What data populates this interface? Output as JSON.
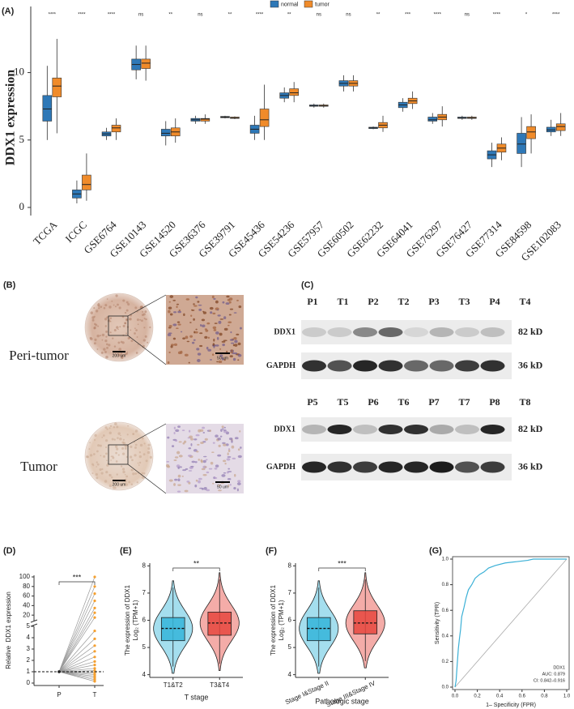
{
  "chart_data": [
    {
      "type": "boxplot",
      "panel": "(A)",
      "ylabel": "DDX1 expression",
      "categories": [
        "TCGA",
        "ICGC",
        "GSE6764",
        "GSE10143",
        "GSE14520",
        "GSE36376",
        "GSE39791",
        "GSE45436",
        "GSE54236",
        "GSE57957",
        "GSE60502",
        "GSE62232",
        "GSE64041",
        "GSE76297",
        "GSE76427",
        "GSE77314",
        "GSE84598",
        "GSE102083"
      ],
      "series": [
        {
          "name": "normal",
          "color": "#2e78b7",
          "values": [
            [
              5.0,
              6.4,
              7.3,
              8.3,
              10.5
            ],
            [
              0.3,
              0.7,
              1.0,
              1.3,
              2.0
            ],
            [
              5.0,
              5.3,
              5.45,
              5.6,
              5.9
            ],
            [
              9.5,
              10.2,
              10.6,
              11.0,
              12.0
            ],
            [
              4.6,
              5.3,
              5.5,
              5.8,
              6.4
            ],
            [
              6.2,
              6.4,
              6.5,
              6.6,
              6.8
            ],
            [
              6.6,
              6.65,
              6.7,
              6.75,
              6.8
            ],
            [
              5.0,
              5.5,
              5.8,
              6.1,
              6.8
            ],
            [
              7.8,
              8.1,
              8.3,
              8.5,
              8.9
            ],
            [
              7.4,
              7.5,
              7.55,
              7.6,
              7.7
            ],
            [
              8.6,
              9.0,
              9.2,
              9.4,
              9.8
            ],
            [
              5.8,
              5.85,
              5.9,
              5.95,
              6.0
            ],
            [
              7.1,
              7.4,
              7.6,
              7.8,
              8.1
            ],
            [
              6.2,
              6.4,
              6.5,
              6.7,
              7.0
            ],
            [
              6.5,
              6.6,
              6.65,
              6.7,
              6.8
            ],
            [
              3.0,
              3.6,
              3.9,
              4.2,
              4.8
            ],
            [
              3.0,
              4.0,
              4.7,
              5.5,
              6.7
            ],
            [
              5.3,
              5.6,
              5.75,
              5.95,
              6.5
            ]
          ]
        },
        {
          "name": "tumor",
          "color": "#f08b2a",
          "values": [
            [
              5.5,
              8.2,
              9.0,
              9.6,
              12.5
            ],
            [
              0.5,
              1.3,
              1.7,
              2.4,
              4.0
            ],
            [
              5.0,
              5.6,
              5.9,
              6.1,
              6.6
            ],
            [
              9.4,
              10.3,
              10.7,
              11.0,
              12.0
            ],
            [
              4.8,
              5.3,
              5.6,
              5.9,
              6.6
            ],
            [
              6.2,
              6.4,
              6.55,
              6.6,
              6.9
            ],
            [
              6.55,
              6.6,
              6.65,
              6.7,
              6.75
            ],
            [
              5.0,
              6.0,
              6.5,
              7.3,
              9.1
            ],
            [
              7.8,
              8.3,
              8.5,
              8.8,
              9.3
            ],
            [
              7.4,
              7.5,
              7.55,
              7.6,
              7.7
            ],
            [
              8.6,
              9.0,
              9.2,
              9.4,
              9.8
            ],
            [
              5.6,
              5.9,
              6.1,
              6.3,
              6.8
            ],
            [
              7.3,
              7.7,
              7.9,
              8.1,
              8.6
            ],
            [
              6.0,
              6.5,
              6.7,
              6.9,
              7.5
            ],
            [
              6.5,
              6.6,
              6.65,
              6.7,
              6.8
            ],
            [
              3.5,
              4.1,
              4.4,
              4.7,
              5.2
            ],
            [
              4.0,
              5.1,
              5.6,
              6.0,
              6.9
            ],
            [
              5.3,
              5.7,
              6.0,
              6.2,
              7.0
            ]
          ]
        }
      ],
      "annotations": [
        "****",
        "****",
        "****",
        "ns",
        "**",
        "ns",
        "**",
        "****",
        "**",
        "ns",
        "ns",
        "**",
        "***",
        "****",
        "ns",
        "****",
        "*",
        "****"
      ],
      "ylim": [
        -0.6,
        14.9
      ],
      "yticks": [
        0,
        5,
        10
      ]
    },
    {
      "type": "paired",
      "panel": "(D)",
      "ylabel": "Relative  DDX1 expression",
      "categories": [
        "P",
        "T"
      ],
      "values": [
        [
          1,
          1,
          1,
          1,
          1,
          1,
          1,
          1,
          1,
          1,
          1,
          1,
          1,
          1,
          1,
          1,
          1,
          1,
          1,
          1,
          1,
          1
        ],
        [
          0.15,
          0.3,
          0.45,
          0.6,
          0.75,
          0.9,
          1.1,
          1.3,
          1.6,
          1.9,
          2.3,
          2.8,
          3.3,
          3.9,
          4.6,
          15,
          25,
          35,
          50,
          65,
          80,
          100
        ]
      ],
      "color": "#f5a030",
      "ylim": [
        0,
        5
      ],
      "yticks": [
        0,
        1,
        2,
        3,
        4,
        5
      ],
      "ylim_upper": [
        5,
        100
      ],
      "yticks_upper": [
        20,
        40,
        60,
        80,
        100
      ],
      "reference_line": 1,
      "annotation": "***"
    },
    {
      "type": "violin",
      "panel": "(E)",
      "ylabel": "The expression of DDX1",
      "ylabel2": "Log₂ (TPM+1)",
      "xlabel": "T stage",
      "categories": [
        "T1&T2",
        "T3&T4"
      ],
      "colors": [
        "#35b5d9",
        "#e6463e"
      ],
      "values": [
        [
          4.3,
          5.25,
          5.7,
          6.1,
          7.2
        ],
        [
          4.4,
          5.45,
          5.9,
          6.3,
          7.5
        ]
      ],
      "ylim": [
        3.9,
        8.1
      ],
      "yticks": [
        4,
        5,
        6,
        7,
        8
      ],
      "annotation": "**"
    },
    {
      "type": "violin",
      "panel": "(F)",
      "ylabel": "The expression of DDX1",
      "ylabel2": "Log₂ (TPM+1)",
      "xlabel": "Pathologic stage",
      "categories": [
        "Stage I&Stage II",
        "Stage III&Stage IV"
      ],
      "colors": [
        "#35b5d9",
        "#e6463e"
      ],
      "values": [
        [
          4.3,
          5.25,
          5.7,
          6.1,
          7.2
        ],
        [
          4.5,
          5.5,
          5.9,
          6.35,
          7.5
        ]
      ],
      "ylim": [
        3.9,
        8.1
      ],
      "yticks": [
        4,
        5,
        6,
        7,
        8
      ],
      "annotation": "***"
    },
    {
      "type": "roc",
      "panel": "(G)",
      "xlabel": "1– Specificity (FPR)",
      "ylabel": "Sensitivity (TPR)",
      "x": [
        0,
        0.01,
        0.02,
        0.03,
        0.04,
        0.05,
        0.06,
        0.08,
        0.1,
        0.12,
        0.15,
        0.18,
        0.22,
        0.26,
        0.3,
        0.36,
        0.45,
        0.55,
        0.65,
        0.7,
        1.0
      ],
      "values": [
        0,
        0.05,
        0.18,
        0.3,
        0.38,
        0.45,
        0.55,
        0.62,
        0.7,
        0.76,
        0.8,
        0.85,
        0.88,
        0.9,
        0.93,
        0.95,
        0.97,
        0.98,
        0.99,
        1.0,
        1.0
      ],
      "color": "#3bb0d6",
      "xlim": [
        0,
        1
      ],
      "ylim": [
        0,
        1
      ],
      "xticks": [
        {
          "value": 0,
          "label": "0.0"
        },
        0.2,
        0.4,
        0.6,
        0.8,
        {
          "value": 1,
          "label": "1.0"
        }
      ],
      "yticks": [
        {
          "value": 0,
          "label": "0.0"
        },
        0.2,
        0.4,
        0.6,
        0.8,
        {
          "value": 1,
          "label": "1.0"
        }
      ],
      "legend_name": "DDX1",
      "auc": "AUC: 0.879",
      "ci": "CI: 0.842–0.916"
    }
  ],
  "ihc": {
    "panel": "(B)",
    "rows": [
      {
        "label": "Peri-tumor",
        "scale_bars": [
          "200 um",
          "50 um"
        ]
      },
      {
        "label": "Tumor",
        "scale_bars": [
          "200 um",
          "50 um"
        ]
      }
    ]
  },
  "blot": {
    "panel": "(C)",
    "blots": [
      {
        "lanes": [
          "P1",
          "T1",
          "P2",
          "T2",
          "P3",
          "T3",
          "P4",
          "T4"
        ],
        "rows": [
          {
            "label": "DDX1",
            "size": "82 kD"
          },
          {
            "label": "GAPDH",
            "size": "36 kD"
          }
        ]
      },
      {
        "lanes": [
          "P5",
          "T5",
          "P6",
          "T6",
          "P7",
          "T7",
          "P8",
          "T8"
        ],
        "rows": [
          {
            "label": "DDX1",
            "size": "82 kD"
          },
          {
            "label": "GAPDH",
            "size": "36 kD"
          }
        ]
      }
    ]
  }
}
